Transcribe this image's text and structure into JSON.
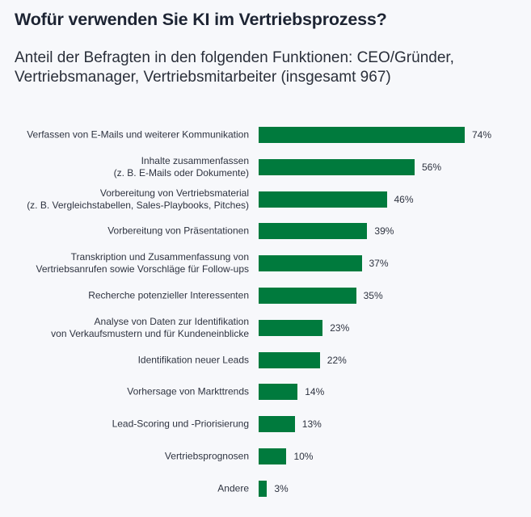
{
  "chart_data": {
    "type": "bar",
    "orientation": "horizontal",
    "title": "Wofür verwenden Sie KI im Vertriebsprozess?",
    "subtitle": "Anteil der Befragten in den folgenden Funktionen: CEO/Gründer, Vertriebsmanager, Vertriebsmitarbeiter (insgesamt 967)",
    "xlabel": "",
    "ylabel": "",
    "xlim": [
      0,
      74
    ],
    "grid": false,
    "unit": "%",
    "bar_color": "#007a3d",
    "categories": [
      [
        "Verfassen von E-Mails und weiterer Kommunikation"
      ],
      [
        "Inhalte zusammenfassen",
        "(z. B. E-Mails oder Dokumente)"
      ],
      [
        "Vorbereitung von Vertriebsmaterial",
        "(z. B. Vergleichstabellen, Sales-Playbooks, Pitches)"
      ],
      [
        "Vorbereitung von Präsentationen"
      ],
      [
        "Transkription und Zusammenfassung von",
        "Vertriebsanrufen sowie Vorschläge für Follow-ups"
      ],
      [
        "Recherche potenzieller Interessenten"
      ],
      [
        "Analyse von Daten zur Identifikation",
        "von Verkaufsmustern und für Kundeneinblicke"
      ],
      [
        "Identifikation neuer Leads"
      ],
      [
        "Vorhersage von Markttrends"
      ],
      [
        "Lead-Scoring und -Priorisierung"
      ],
      [
        "Vertriebsprognosen"
      ],
      [
        "Andere"
      ]
    ],
    "values": [
      74,
      56,
      46,
      39,
      37,
      35,
      23,
      22,
      14,
      13,
      10,
      3
    ],
    "labels": [
      "74%",
      "56%",
      "46%",
      "39%",
      "37%",
      "35%",
      "23%",
      "22%",
      "14%",
      "13%",
      "10%",
      "3%"
    ]
  }
}
